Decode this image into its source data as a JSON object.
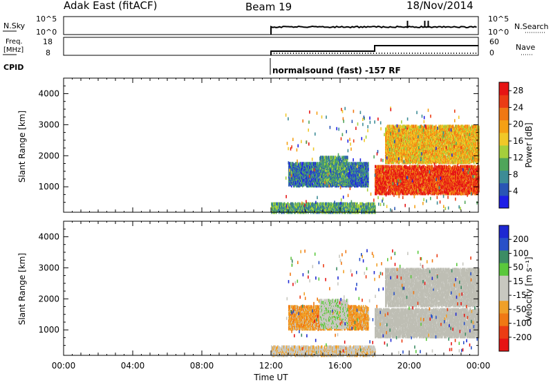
{
  "header": {
    "station": "Adak East (fitACF)",
    "beam": "Beam 19",
    "date": "18/Nov/2014"
  },
  "sky_panel": {
    "left_label": "N.Sky",
    "right_label": "N.Search",
    "ticks_left": [
      "10^5",
      "10^0"
    ],
    "ticks_right": [
      "10^5",
      "10^0"
    ]
  },
  "freq_panel": {
    "left_label": "Freq.",
    "left_unit": "[MHz]",
    "right_label": "Nave",
    "ticks_left": [
      "18",
      "8"
    ],
    "ticks_right": [
      "60",
      "0"
    ]
  },
  "cpid_panel": {
    "label": "CPID",
    "program": "normalsound (fast) -157 RF"
  },
  "x_axis": {
    "label": "Time UT",
    "ticks": [
      "00:00",
      "04:00",
      "08:00",
      "12:00",
      "16:00",
      "20:00",
      "00:00"
    ]
  },
  "colors": {
    "power_scale": [
      "#1e1ee6",
      "#2a55b5",
      "#3d8c96",
      "#4fa55a",
      "#a5cf3c",
      "#f0c828",
      "#f5a014",
      "#f07814",
      "#eb3c14",
      "#e61414"
    ],
    "velocity_scale": [
      "#1e28d2",
      "#2850c8",
      "#3c8c64",
      "#5ac83c",
      "#c8c8c0",
      "#c8c8c0",
      "#f0a028",
      "#f07814",
      "#eb3c14",
      "#e61414"
    ],
    "ground_scatter": "#bebeb4"
  },
  "chart_data": [
    {
      "type": "heatmap",
      "name": "power",
      "ylabel": "Slant Range [km]",
      "y_ticks": [
        "1000",
        "2000",
        "3000",
        "4000"
      ],
      "ylim": [
        180,
        4500
      ],
      "colorbar_label": "Power [dB]",
      "colorbar_ticks": [
        "4",
        "8",
        "12",
        "16",
        "20",
        "24",
        "28"
      ],
      "colorbar_range": [
        0,
        30
      ],
      "regions": [
        {
          "t_start": 13.0,
          "t_end": 17.6,
          "r_low": 1050,
          "r_high": 1800,
          "value": 6
        },
        {
          "t_start": 14.8,
          "t_end": 16.4,
          "r_low": 1100,
          "r_high": 2000,
          "value": 9
        },
        {
          "t_start": 18.0,
          "t_end": 24.0,
          "r_low": 800,
          "r_high": 1700,
          "value": 26
        },
        {
          "t_start": 18.6,
          "t_end": 24.0,
          "r_low": 1800,
          "r_high": 3000,
          "value": 18
        },
        {
          "t_start": 12.0,
          "t_end": 18.0,
          "r_low": 200,
          "r_high": 500,
          "value": 10
        }
      ]
    },
    {
      "type": "heatmap",
      "name": "velocity",
      "ylabel": "Slant Range [km]",
      "y_ticks": [
        "1000",
        "2000",
        "3000",
        "4000"
      ],
      "ylim": [
        180,
        4500
      ],
      "colorbar_label": "Velocity [m s⁻¹]",
      "colorbar_ticks": [
        "200",
        "100",
        "50",
        "15",
        "-15",
        "-50",
        "-100",
        "-200"
      ],
      "colorbar_range": [
        -250,
        250
      ],
      "regions": [
        {
          "t_start": 13.0,
          "t_end": 17.6,
          "r_low": 1050,
          "r_high": 1800,
          "value": -80
        },
        {
          "t_start": 14.8,
          "t_end": 16.4,
          "r_low": 1100,
          "r_high": 2000,
          "value": 30
        },
        {
          "t_start": 18.0,
          "t_end": 24.0,
          "r_low": 800,
          "r_high": 1700,
          "value": 0
        },
        {
          "t_start": 18.6,
          "t_end": 24.0,
          "r_low": 1800,
          "r_high": 3000,
          "value": 0
        },
        {
          "t_start": 12.0,
          "t_end": 18.0,
          "r_low": 200,
          "r_high": 500,
          "value": -30
        }
      ]
    }
  ]
}
